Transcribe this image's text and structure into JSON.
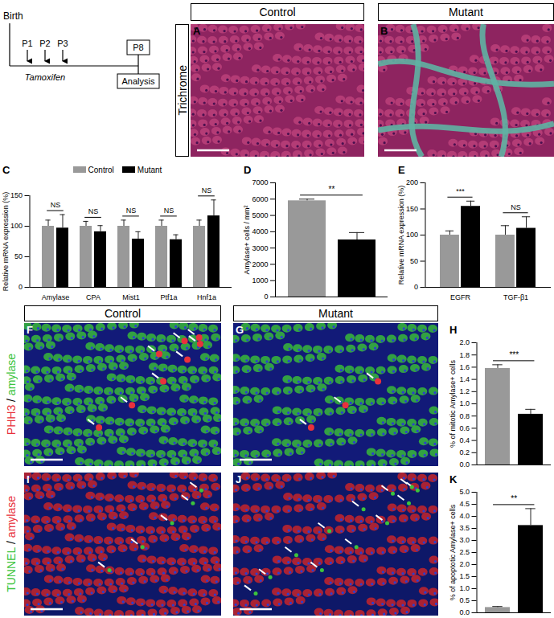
{
  "figure": {
    "timeline": {
      "start": "Birth",
      "injections": [
        "P1",
        "P2",
        "P3"
      ],
      "treatment": "Tamoxifen",
      "end": "P8",
      "analysis": "Analysis"
    },
    "column_headers": [
      "Control",
      "Mutant"
    ],
    "image_rows": [
      {
        "label_parts": [
          {
            "text": "Trichrome"
          }
        ],
        "panels": [
          "A",
          "B"
        ]
      },
      {
        "label_parts": [
          {
            "text": "PHH3",
            "color": "#e8323c"
          },
          {
            "text": " / "
          },
          {
            "text": "amylase",
            "color": "#3cc43c"
          }
        ],
        "panels": [
          "F",
          "G"
        ]
      },
      {
        "label_parts": [
          {
            "text": "TUNNEL",
            "color": "#3cc43c"
          },
          {
            "text": " / "
          },
          {
            "text": "amylase",
            "color": "#e8323c"
          }
        ],
        "panels": [
          "I",
          "J"
        ]
      }
    ]
  },
  "chart_data": [
    {
      "panel": "C",
      "type": "bar",
      "y_label": "Relative mRNA expression (%)",
      "categories": [
        "Amylase",
        "CPA",
        "Mist1",
        "Ptf1a",
        "Hnf1a"
      ],
      "series": [
        {
          "name": "Control",
          "color": "#999999",
          "values": [
            100,
            100,
            100,
            100,
            100
          ],
          "errors": [
            10,
            8,
            10,
            10,
            10
          ]
        },
        {
          "name": "Mutant",
          "color": "#000000",
          "values": [
            97,
            91,
            79,
            78,
            117
          ],
          "errors": [
            22,
            10,
            12,
            8,
            26
          ]
        }
      ],
      "significance": [
        "NS",
        "NS",
        "NS",
        "NS",
        "NS"
      ],
      "ylim": [
        0,
        150
      ],
      "yticks": [
        0,
        50,
        100,
        150
      ],
      "legend": "top"
    },
    {
      "panel": "D",
      "type": "bar",
      "y_label": "Amylase+ cells / mm²",
      "categories": [
        null,
        null
      ],
      "values": [
        5900,
        3500
      ],
      "errors": [
        100,
        450
      ],
      "colors": [
        "#999999",
        "#000000"
      ],
      "significance": "**",
      "ylim": [
        0,
        7000
      ],
      "yticks": [
        0,
        1000,
        2000,
        3000,
        4000,
        5000,
        6000,
        7000
      ],
      "tick_labels": "y"
    },
    {
      "panel": "E",
      "type": "bar",
      "y_label": "Relative mRNA expression (%)",
      "categories": [
        "EGFR",
        "TGF-β1"
      ],
      "series": [
        {
          "name": "Control",
          "color": "#999999",
          "values": [
            100,
            100
          ],
          "errors": [
            8,
            18
          ]
        },
        {
          "name": "Mutant",
          "color": "#000000",
          "values": [
            155,
            113
          ],
          "errors": [
            10,
            22
          ]
        }
      ],
      "significance": [
        "***",
        "NS"
      ],
      "ylim": [
        0,
        200
      ],
      "yticks": [
        0,
        50,
        100,
        150,
        200
      ]
    },
    {
      "panel": "H",
      "type": "bar",
      "y_label": "% of mitotic Amylase+ cells",
      "categories": [
        null,
        null
      ],
      "values": [
        1.58,
        0.83
      ],
      "errors": [
        0.06,
        0.08
      ],
      "colors": [
        "#999999",
        "#000000"
      ],
      "significance": "***",
      "ylim": [
        0,
        2
      ],
      "yticks": [
        {
          "value": 0,
          "label": "0.0"
        },
        0.2,
        0.4,
        0.6,
        0.8,
        {
          "value": 1,
          "label": "1.0"
        },
        1.2,
        1.4,
        1.6,
        1.8,
        {
          "value": 2,
          "label": "2.0"
        }
      ],
      "tick_labels": "y"
    },
    {
      "panel": "K",
      "type": "bar",
      "y_label": "% of apoptotic Amylase+ cells",
      "categories": [
        null,
        null
      ],
      "values": [
        0.22,
        3.62
      ],
      "errors": [
        0.04,
        0.7
      ],
      "colors": [
        "#999999",
        "#000000"
      ],
      "significance": "**",
      "ylim": [
        0,
        5
      ],
      "yticks": [
        {
          "value": 0,
          "label": "0.0"
        },
        0.5,
        {
          "value": 1,
          "label": "1.0"
        },
        1.5,
        {
          "value": 2,
          "label": "2.0"
        },
        2.5,
        {
          "value": 3,
          "label": "3.0"
        },
        3.5,
        {
          "value": 4,
          "label": "4.0"
        },
        4.5,
        {
          "value": 5,
          "label": "5.0"
        }
      ],
      "tick_labels": "y"
    }
  ]
}
